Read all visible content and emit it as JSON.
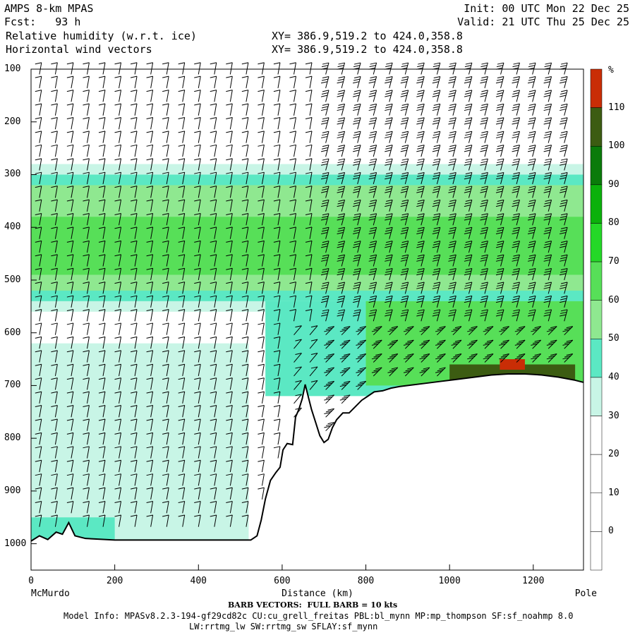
{
  "header": {
    "left1": "AMPS 8-km MPAS",
    "left2": "Fcst:   93 h",
    "left3": "Relative humidity (w.r.t. ice)",
    "left4": "Horizontal wind vectors",
    "right1": "Init: 00 UTC Mon 22 Dec 25",
    "right2": "Valid: 21 UTC Thu 25 Dec 25",
    "xy1": "XY= 386.9,519.2 to 424.0,358.8",
    "xy2": "XY= 386.9,519.2 to 424.0,358.8"
  },
  "footer": {
    "barb": "BARB VECTORS:  FULL BARB = 10 kts",
    "model1": "Model Info: MPASv8.2.3-194-gf29cd82c CU:cu_grell_freitas PBL:bl_mynn MP:mp_thompson SF:sf_noahmp 8.0",
    "model2": "LW:rrtmg_lw SW:rrtmg_sw SFLAY:sf_mynn"
  },
  "chart_data": {
    "type": "heatmap",
    "title": "Relative humidity (w.r.t. ice)",
    "xlabel": "Distance (km)",
    "ylabel": "",
    "xlim": [
      0,
      1320
    ],
    "ylim": [
      1050,
      100
    ],
    "x_ticks": [
      "0",
      "200",
      "400",
      "600",
      "800",
      "1000",
      "1200"
    ],
    "y_ticks": [
      "100",
      "200",
      "300",
      "400",
      "500",
      "600",
      "700",
      "800",
      "900",
      "1000"
    ],
    "x_end_labels": {
      "left": "McMurdo",
      "right": "Pole"
    },
    "colorbar": {
      "unit": "%",
      "ticks": [
        "110",
        "100",
        "90",
        "80",
        "70",
        "60",
        "50",
        "40",
        "30",
        "20",
        "10",
        "0"
      ],
      "bins": [
        {
          "lo": -10,
          "hi": 0,
          "color": "#ffffff"
        },
        {
          "lo": 0,
          "hi": 10,
          "color": "#ffffff"
        },
        {
          "lo": 10,
          "hi": 20,
          "color": "#ffffff"
        },
        {
          "lo": 20,
          "hi": 30,
          "color": "#ffffff"
        },
        {
          "lo": 30,
          "hi": 40,
          "color": "#c8f5e6"
        },
        {
          "lo": 40,
          "hi": 50,
          "color": "#5be8c3"
        },
        {
          "lo": 50,
          "hi": 60,
          "color": "#8fe890"
        },
        {
          "lo": 60,
          "hi": 70,
          "color": "#57df58"
        },
        {
          "lo": 70,
          "hi": 80,
          "color": "#24d827"
        },
        {
          "lo": 80,
          "hi": 90,
          "color": "#0bb10b"
        },
        {
          "lo": 90,
          "hi": 100,
          "color": "#0a7b0a"
        },
        {
          "lo": 100,
          "hi": 110,
          "color": "#3c5c12"
        },
        {
          "lo": 110,
          "hi": 120,
          "color": "#c92d06"
        }
      ]
    },
    "terrain_pressure": [
      [
        0,
        995
      ],
      [
        20,
        985
      ],
      [
        40,
        992
      ],
      [
        60,
        978
      ],
      [
        75,
        982
      ],
      [
        90,
        960
      ],
      [
        105,
        985
      ],
      [
        130,
        990
      ],
      [
        200,
        993
      ],
      [
        260,
        993
      ],
      [
        330,
        993
      ],
      [
        400,
        993
      ],
      [
        460,
        993
      ],
      [
        525,
        993
      ],
      [
        540,
        985
      ],
      [
        550,
        955
      ],
      [
        560,
        915
      ],
      [
        572,
        880
      ],
      [
        585,
        865
      ],
      [
        595,
        855
      ],
      [
        602,
        822
      ],
      [
        612,
        810
      ],
      [
        625,
        812
      ],
      [
        632,
        760
      ],
      [
        640,
        745
      ],
      [
        648,
        725
      ],
      [
        655,
        698
      ],
      [
        662,
        720
      ],
      [
        670,
        745
      ],
      [
        680,
        770
      ],
      [
        690,
        795
      ],
      [
        700,
        808
      ],
      [
        710,
        802
      ],
      [
        720,
        780
      ],
      [
        730,
        765
      ],
      [
        745,
        752
      ],
      [
        760,
        752
      ],
      [
        775,
        740
      ],
      [
        790,
        728
      ],
      [
        805,
        720
      ],
      [
        820,
        712
      ],
      [
        840,
        710
      ],
      [
        860,
        705
      ],
      [
        880,
        702
      ],
      [
        900,
        700
      ],
      [
        940,
        696
      ],
      [
        980,
        692
      ],
      [
        1020,
        688
      ],
      [
        1060,
        684
      ],
      [
        1100,
        680
      ],
      [
        1140,
        678
      ],
      [
        1180,
        678
      ],
      [
        1220,
        680
      ],
      [
        1260,
        684
      ],
      [
        1300,
        690
      ],
      [
        1320,
        694
      ]
    ],
    "humidity_regions": [
      {
        "band": "30-40",
        "x": [
          0,
          1320
        ],
        "p": [
          280,
          560
        ]
      },
      {
        "band": "40-50",
        "x": [
          0,
          1320
        ],
        "p": [
          300,
          540
        ]
      },
      {
        "band": "50-60",
        "x": [
          0,
          1320
        ],
        "p": [
          320,
          520
        ]
      },
      {
        "band": "60-70",
        "x": [
          0,
          1320
        ],
        "p": [
          380,
          490
        ]
      },
      {
        "band": "40-50",
        "x": [
          560,
          1320
        ],
        "p": [
          540,
          720
        ]
      },
      {
        "band": "60-70",
        "x": [
          800,
          1320
        ],
        "p": [
          540,
          700
        ]
      },
      {
        "band": "100-110",
        "x": [
          1000,
          1300
        ],
        "p": [
          660,
          690
        ]
      },
      {
        "band": "110-120",
        "x": [
          1120,
          1180
        ],
        "p": [
          650,
          670
        ]
      },
      {
        "band": "30-40",
        "x": [
          0,
          520
        ],
        "p": [
          620,
          1050
        ]
      },
      {
        "band": "40-50",
        "x": [
          0,
          200
        ],
        "p": [
          950,
          1050
        ]
      }
    ]
  }
}
